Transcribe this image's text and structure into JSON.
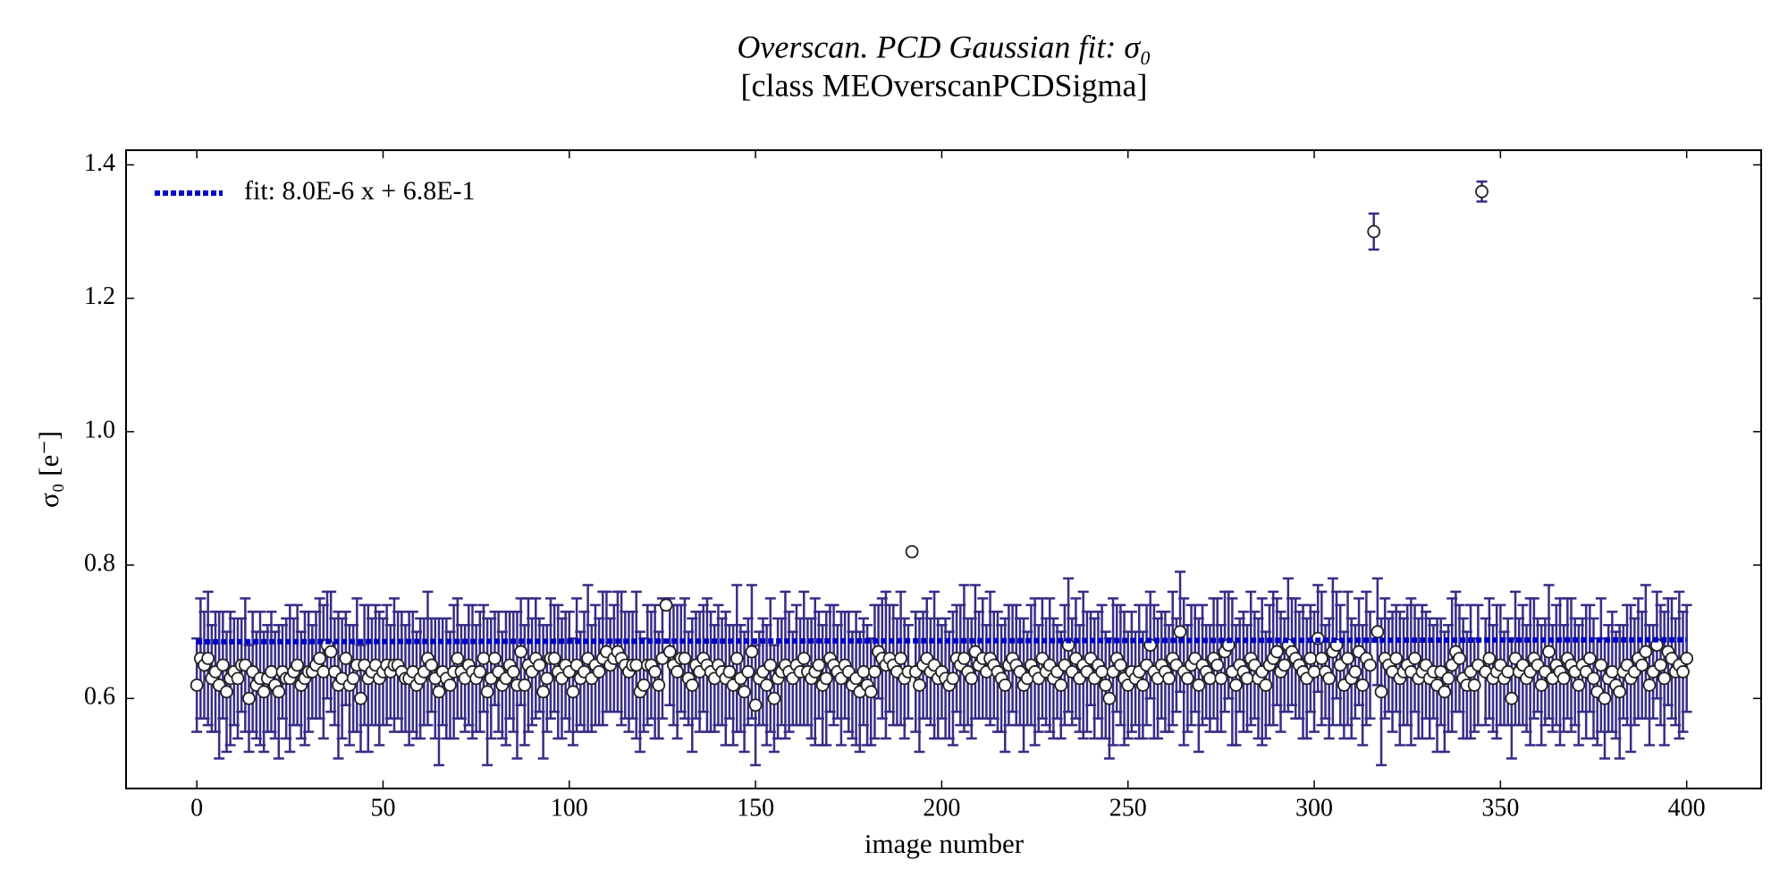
{
  "chart_data": {
    "type": "scatter",
    "title": "Overscan. PCD Gaussian fit: σ₀",
    "subtitle": "[class MEOverscanPCDSigma]",
    "x_label": "image number",
    "y_label": "σ₀ [e⁻]",
    "xlim": [
      -19,
      420
    ],
    "ylim": [
      0.465,
      1.422
    ],
    "xticks": [
      0,
      50,
      100,
      150,
      200,
      250,
      300,
      350,
      400
    ],
    "yticks": [
      0.6,
      0.8,
      {
        "value": 1,
        "label": "1.0"
      },
      1.2,
      1.4
    ],
    "legend": "upper left",
    "series": [
      {
        "color": "#372d87",
        "x": [
          0,
          1,
          2,
          3,
          4,
          5,
          6,
          7,
          8,
          9,
          10,
          11,
          12,
          13,
          14,
          15,
          16,
          17,
          18,
          19,
          20,
          21,
          22,
          23,
          24,
          25,
          26,
          27,
          28,
          29,
          30,
          31,
          32,
          33,
          34,
          35,
          36,
          37,
          38,
          39,
          40,
          41,
          42,
          43,
          44,
          45,
          46,
          47,
          48,
          49,
          50,
          51,
          52,
          53,
          54,
          55,
          56,
          57,
          58,
          59,
          60,
          61,
          62,
          63,
          64,
          65,
          66,
          67,
          68,
          69,
          70,
          71,
          72,
          73,
          74,
          75,
          76,
          77,
          78,
          79,
          80,
          81,
          82,
          83,
          84,
          85,
          86,
          87,
          88,
          89,
          90,
          91,
          92,
          93,
          94,
          95,
          96,
          97,
          98,
          99,
          100,
          101,
          102,
          103,
          104,
          105,
          106,
          107,
          108,
          109,
          110,
          111,
          112,
          113,
          114,
          115,
          116,
          117,
          118,
          119,
          120,
          121,
          122,
          123,
          124,
          125,
          126,
          127,
          128,
          129,
          130,
          131,
          132,
          133,
          134,
          135,
          136,
          137,
          138,
          139,
          140,
          141,
          142,
          143,
          144,
          145,
          146,
          147,
          148,
          149,
          150,
          151,
          152,
          153,
          154,
          155,
          156,
          157,
          158,
          159,
          160,
          161,
          162,
          163,
          164,
          165,
          166,
          167,
          168,
          169,
          170,
          171,
          172,
          173,
          174,
          175,
          176,
          177,
          178,
          179,
          180,
          181,
          182,
          183,
          184,
          185,
          186,
          187,
          188,
          189,
          190,
          191,
          192,
          193,
          194,
          195,
          196,
          197,
          198,
          199,
          200,
          201,
          202,
          203,
          204,
          205,
          206,
          207,
          208,
          209,
          210,
          211,
          212,
          213,
          214,
          215,
          216,
          217,
          218,
          219,
          220,
          221,
          222,
          223,
          224,
          225,
          226,
          227,
          228,
          229,
          230,
          231,
          232,
          233,
          234,
          235,
          236,
          237,
          238,
          239,
          240,
          241,
          242,
          243,
          244,
          245,
          246,
          247,
          248,
          249,
          250,
          251,
          252,
          253,
          254,
          255,
          256,
          257,
          258,
          259,
          260,
          261,
          262,
          263,
          264,
          265,
          266,
          267,
          268,
          269,
          270,
          271,
          272,
          273,
          274,
          275,
          276,
          277,
          278,
          279,
          280,
          281,
          282,
          283,
          284,
          285,
          286,
          287,
          288,
          289,
          290,
          291,
          292,
          293,
          294,
          295,
          296,
          297,
          298,
          299,
          300,
          301,
          302,
          303,
          304,
          305,
          306,
          307,
          308,
          309,
          310,
          311,
          312,
          313,
          314,
          315,
          316,
          317,
          318,
          319,
          320,
          321,
          322,
          323,
          324,
          325,
          326,
          327,
          328,
          329,
          330,
          331,
          332,
          333,
          334,
          335,
          336,
          337,
          338,
          339,
          340,
          341,
          342,
          343,
          344,
          345,
          346,
          347,
          348,
          349,
          350,
          351,
          352,
          353,
          354,
          355,
          356,
          357,
          358,
          359,
          360,
          361,
          362,
          363,
          364,
          365,
          366,
          367,
          368,
          369,
          370,
          371,
          372,
          373,
          374,
          375,
          376,
          377,
          378,
          379,
          380,
          381,
          382,
          383,
          384,
          385,
          386,
          387,
          388,
          389,
          390,
          391,
          392,
          393,
          394,
          395,
          396,
          397,
          398,
          399,
          400
        ],
        "values": [
          0.62,
          0.66,
          0.65,
          0.66,
          0.63,
          0.64,
          0.62,
          0.65,
          0.61,
          0.63,
          0.64,
          0.63,
          0.65,
          0.65,
          0.6,
          0.64,
          0.62,
          0.63,
          0.61,
          0.63,
          0.64,
          0.62,
          0.61,
          0.64,
          0.63,
          0.63,
          0.64,
          0.65,
          0.62,
          0.63,
          0.64,
          0.64,
          0.65,
          0.66,
          0.64,
          0.68,
          0.67,
          0.64,
          0.62,
          0.63,
          0.66,
          0.62,
          0.63,
          0.65,
          0.6,
          0.65,
          0.63,
          0.64,
          0.65,
          0.63,
          0.64,
          0.65,
          0.64,
          0.65,
          0.65,
          0.64,
          0.63,
          0.63,
          0.64,
          0.62,
          0.63,
          0.64,
          0.66,
          0.65,
          0.63,
          0.61,
          0.64,
          0.63,
          0.62,
          0.64,
          0.66,
          0.64,
          0.63,
          0.65,
          0.64,
          0.63,
          0.64,
          0.66,
          0.61,
          0.63,
          0.66,
          0.64,
          0.62,
          0.63,
          0.65,
          0.64,
          0.62,
          0.67,
          0.62,
          0.65,
          0.64,
          0.66,
          0.65,
          0.61,
          0.63,
          0.66,
          0.66,
          0.64,
          0.63,
          0.65,
          0.64,
          0.61,
          0.65,
          0.63,
          0.64,
          0.66,
          0.63,
          0.65,
          0.64,
          0.66,
          0.67,
          0.65,
          0.66,
          0.67,
          0.66,
          0.65,
          0.64,
          0.65,
          0.65,
          0.61,
          0.62,
          0.65,
          0.65,
          0.64,
          0.62,
          0.66,
          0.74,
          0.67,
          0.65,
          0.64,
          0.66,
          0.66,
          0.63,
          0.62,
          0.65,
          0.64,
          0.66,
          0.65,
          0.64,
          0.63,
          0.65,
          0.64,
          0.63,
          0.64,
          0.62,
          0.66,
          0.63,
          0.61,
          0.64,
          0.67,
          0.59,
          0.63,
          0.64,
          0.62,
          0.65,
          0.6,
          0.63,
          0.64,
          0.65,
          0.64,
          0.63,
          0.65,
          0.64,
          0.66,
          0.64,
          0.63,
          0.64,
          0.65,
          0.62,
          0.63,
          0.66,
          0.65,
          0.64,
          0.63,
          0.65,
          0.64,
          0.62,
          0.63,
          0.61,
          0.64,
          0.62,
          0.61,
          0.64,
          0.67,
          0.66,
          0.65,
          0.66,
          0.65,
          0.64,
          0.66,
          0.63,
          0.64,
          0.82,
          0.64,
          0.62,
          0.65,
          0.66,
          0.64,
          0.65,
          0.63,
          0.64,
          0.63,
          0.62,
          0.63,
          0.66,
          0.65,
          0.66,
          0.64,
          0.63,
          0.67,
          0.65,
          0.66,
          0.64,
          0.66,
          0.65,
          0.64,
          0.63,
          0.62,
          0.65,
          0.66,
          0.65,
          0.64,
          0.62,
          0.63,
          0.65,
          0.64,
          0.63,
          0.66,
          0.64,
          0.65,
          0.63,
          0.64,
          0.62,
          0.65,
          0.68,
          0.64,
          0.66,
          0.63,
          0.65,
          0.64,
          0.66,
          0.63,
          0.65,
          0.64,
          0.62,
          0.6,
          0.64,
          0.66,
          0.65,
          0.63,
          0.62,
          0.64,
          0.63,
          0.64,
          0.62,
          0.65,
          0.68,
          0.64,
          0.63,
          0.65,
          0.64,
          0.63,
          0.66,
          0.65,
          0.7,
          0.64,
          0.63,
          0.65,
          0.66,
          0.62,
          0.65,
          0.64,
          0.63,
          0.66,
          0.65,
          0.63,
          0.67,
          0.68,
          0.64,
          0.62,
          0.65,
          0.64,
          0.63,
          0.66,
          0.65,
          0.63,
          0.64,
          0.62,
          0.65,
          0.66,
          0.67,
          0.64,
          0.65,
          0.68,
          0.67,
          0.66,
          0.65,
          0.64,
          0.63,
          0.66,
          0.64,
          0.69,
          0.66,
          0.64,
          0.63,
          0.67,
          0.68,
          0.65,
          0.62,
          0.66,
          0.63,
          0.64,
          0.67,
          0.62,
          0.66,
          0.65,
          1.3,
          0.7,
          0.61,
          0.66,
          0.65,
          0.64,
          0.66,
          0.63,
          0.64,
          0.65,
          0.64,
          0.66,
          0.63,
          0.64,
          0.65,
          0.63,
          0.64,
          0.62,
          0.64,
          0.61,
          0.63,
          0.65,
          0.67,
          0.66,
          0.63,
          0.62,
          0.64,
          0.62,
          0.65,
          1.36,
          0.64,
          0.66,
          0.63,
          0.64,
          0.65,
          0.63,
          0.64,
          0.6,
          0.66,
          0.64,
          0.65,
          0.63,
          0.64,
          0.66,
          0.65,
          0.62,
          0.64,
          0.67,
          0.63,
          0.65,
          0.64,
          0.63,
          0.66,
          0.65,
          0.64,
          0.62,
          0.65,
          0.64,
          0.66,
          0.63,
          0.61,
          0.65,
          0.6,
          0.63,
          0.64,
          0.62,
          0.61,
          0.64,
          0.65,
          0.63,
          0.64,
          0.66,
          0.65,
          0.67,
          0.62,
          0.64,
          0.68,
          0.65,
          0.63,
          0.67,
          0.66,
          0.64,
          0.65,
          0.64,
          0.66
        ],
        "errors": [
          0.07,
          0.09,
          0.08,
          0.1,
          0.08,
          0.09,
          0.11,
          0.08,
          0.09,
          0.1,
          0.08,
          0.09,
          0.07,
          0.1,
          0.08,
          0.09,
          0.08,
          0.1,
          0.09,
          0.08,
          0.09,
          0.08,
          0.1,
          0.07,
          0.09,
          0.11,
          0.08,
          0.09,
          0.08,
          0.1,
          0.09,
          0.07,
          0.08,
          0.09,
          0.1,
          0.08,
          0.09,
          0.08,
          0.11,
          0.09,
          0.07,
          0.09,
          0.08,
          0.1,
          0.08,
          0.09,
          0.11,
          0.08,
          0.09,
          0.1,
          0.08,
          0.09,
          0.07,
          0.1,
          0.08,
          0.09,
          0.08,
          0.1,
          0.09,
          0.08,
          0.09,
          0.08,
          0.1,
          0.07,
          0.09,
          0.11,
          0.08,
          0.09,
          0.08,
          0.1,
          0.09,
          0.07,
          0.08,
          0.09,
          0.1,
          0.08,
          0.09,
          0.08,
          0.11,
          0.09,
          0.07,
          0.09,
          0.08,
          0.1,
          0.08,
          0.09,
          0.11,
          0.08,
          0.09,
          0.1,
          0.08,
          0.09,
          0.07,
          0.1,
          0.08,
          0.09,
          0.08,
          0.1,
          0.09,
          0.08,
          0.09,
          0.08,
          0.1,
          0.07,
          0.09,
          0.11,
          0.08,
          0.09,
          0.08,
          0.1,
          0.09,
          0.07,
          0.08,
          0.09,
          0.1,
          0.08,
          0.09,
          0.08,
          0.11,
          0.09,
          0.07,
          0.09,
          0.08,
          0.1,
          0.08,
          0.09,
          0.005,
          0.08,
          0.09,
          0.1,
          0.08,
          0.09,
          0.07,
          0.1,
          0.08,
          0.09,
          0.08,
          0.1,
          0.09,
          0.08,
          0.09,
          0.08,
          0.1,
          0.07,
          0.09,
          0.11,
          0.08,
          0.09,
          0.08,
          0.1,
          0.09,
          0.07,
          0.08,
          0.09,
          0.1,
          0.08,
          0.09,
          0.08,
          0.11,
          0.09,
          0.07,
          0.09,
          0.08,
          0.1,
          0.08,
          0.09,
          0.11,
          0.08,
          0.09,
          0.1,
          0.08,
          0.09,
          0.07,
          0.1,
          0.08,
          0.09,
          0.08,
          0.1,
          0.09,
          0.08,
          0.09,
          0.08,
          0.1,
          0.07,
          0.09,
          0.11,
          0.08,
          0.09,
          0.08,
          0.1,
          0.09,
          0.07,
          0.005,
          0.09,
          0.1,
          0.08,
          0.09,
          0.08,
          0.11,
          0.09,
          0.07,
          0.09,
          0.08,
          0.1,
          0.08,
          0.09,
          0.11,
          0.08,
          0.09,
          0.1,
          0.08,
          0.09,
          0.07,
          0.1,
          0.08,
          0.09,
          0.08,
          0.1,
          0.09,
          0.08,
          0.09,
          0.08,
          0.1,
          0.07,
          0.09,
          0.11,
          0.08,
          0.09,
          0.08,
          0.1,
          0.09,
          0.07,
          0.08,
          0.09,
          0.1,
          0.08,
          0.09,
          0.08,
          0.11,
          0.09,
          0.07,
          0.09,
          0.08,
          0.1,
          0.08,
          0.09,
          0.11,
          0.08,
          0.09,
          0.1,
          0.08,
          0.09,
          0.07,
          0.1,
          0.08,
          0.09,
          0.08,
          0.1,
          0.09,
          0.08,
          0.09,
          0.08,
          0.1,
          0.07,
          0.09,
          0.11,
          0.08,
          0.09,
          0.08,
          0.1,
          0.09,
          0.07,
          0.08,
          0.09,
          0.1,
          0.08,
          0.09,
          0.08,
          0.11,
          0.09,
          0.07,
          0.09,
          0.08,
          0.1,
          0.08,
          0.09,
          0.11,
          0.08,
          0.09,
          0.1,
          0.08,
          0.09,
          0.07,
          0.1,
          0.08,
          0.09,
          0.08,
          0.1,
          0.09,
          0.08,
          0.09,
          0.08,
          0.1,
          0.07,
          0.09,
          0.11,
          0.08,
          0.09,
          0.08,
          0.1,
          0.09,
          0.07,
          0.08,
          0.09,
          0.1,
          0.08,
          0.027,
          0.08,
          0.11,
          0.09,
          0.07,
          0.09,
          0.08,
          0.1,
          0.08,
          0.09,
          0.11,
          0.08,
          0.09,
          0.1,
          0.08,
          0.09,
          0.07,
          0.1,
          0.08,
          0.09,
          0.08,
          0.1,
          0.09,
          0.08,
          0.09,
          0.08,
          0.1,
          0.07,
          0.09,
          0.015,
          0.08,
          0.09,
          0.08,
          0.1,
          0.09,
          0.07,
          0.08,
          0.09,
          0.1,
          0.08,
          0.09,
          0.08,
          0.11,
          0.09,
          0.07,
          0.09,
          0.08,
          0.1,
          0.08,
          0.09,
          0.11,
          0.08,
          0.09,
          0.1,
          0.08,
          0.09,
          0.07,
          0.1,
          0.08,
          0.09,
          0.08,
          0.1,
          0.09,
          0.08,
          0.09,
          0.08,
          0.1,
          0.07,
          0.09,
          0.11,
          0.08,
          0.09,
          0.08,
          0.1,
          0.09,
          0.07,
          0.08,
          0.09,
          0.1,
          0.08,
          0.09,
          0.08,
          0.11,
          0.09,
          0.08
        ]
      },
      {
        "name": "fit: 8.0E-6 x + 6.8E-1",
        "color": "#0000cc",
        "x": [
          0,
          400
        ],
        "values": [
          0.685,
          0.688
        ]
      }
    ]
  }
}
